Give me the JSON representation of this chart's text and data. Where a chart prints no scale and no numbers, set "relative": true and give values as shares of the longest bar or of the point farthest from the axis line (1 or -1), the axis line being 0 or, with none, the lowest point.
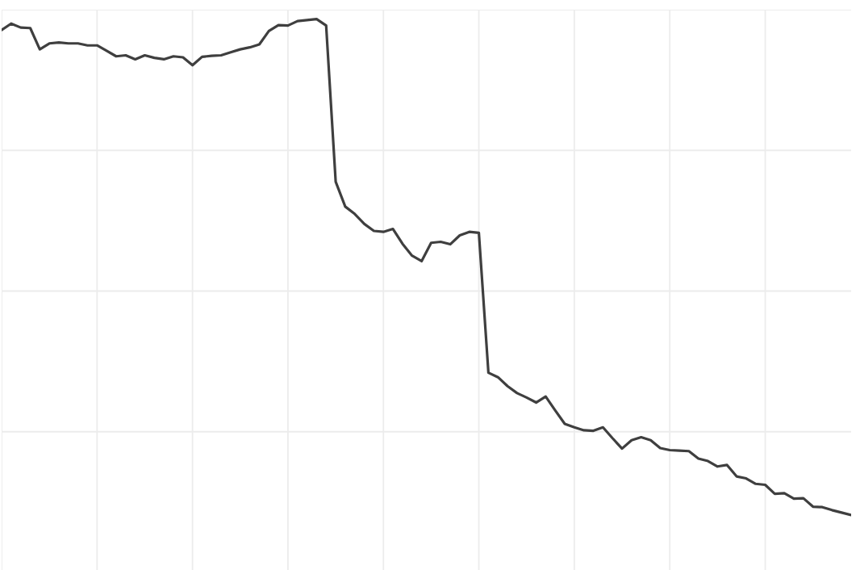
{
  "chart_data": {
    "type": "line",
    "relative": true,
    "categories": [
      null,
      null,
      null,
      null,
      null,
      null,
      null,
      null,
      null,
      null,
      null,
      null,
      null,
      null,
      null,
      null,
      null,
      null,
      null,
      null,
      null,
      null,
      null,
      null,
      null,
      null,
      null,
      null,
      null,
      null,
      null,
      null,
      null,
      null,
      null,
      null,
      null,
      null,
      null,
      null,
      null,
      null,
      null,
      null,
      null,
      null,
      null,
      null,
      null,
      null,
      null,
      null,
      null,
      null,
      null,
      null,
      null,
      null,
      null,
      null,
      null,
      null,
      null,
      null,
      null,
      null,
      null,
      null,
      null,
      null,
      null,
      null,
      null,
      null,
      null,
      null,
      null,
      null,
      null,
      null,
      null,
      null,
      null,
      null,
      null,
      null,
      null,
      null,
      null,
      null
    ],
    "series": [
      {
        "color": "#3f3f3f",
        "values": [
          0.978,
          0.991,
          0.983,
          0.982,
          0.939,
          0.951,
          0.953,
          0.951,
          0.951,
          0.947,
          0.947,
          0.936,
          0.925,
          0.927,
          0.919,
          0.927,
          0.922,
          0.919,
          0.925,
          0.923,
          0.907,
          0.924,
          0.926,
          0.927,
          0.933,
          0.939,
          0.943,
          0.949,
          0.976,
          0.988,
          0.987,
          0.996,
          0.998,
          1.0,
          0.987,
          0.672,
          0.622,
          0.607,
          0.587,
          0.573,
          0.571,
          0.577,
          0.547,
          0.523,
          0.512,
          0.549,
          0.551,
          0.546,
          0.564,
          0.571,
          0.569,
          0.287,
          0.278,
          0.26,
          0.246,
          0.237,
          0.227,
          0.239,
          0.211,
          0.184,
          0.177,
          0.171,
          0.17,
          0.177,
          0.155,
          0.134,
          0.151,
          0.157,
          0.151,
          0.135,
          0.131,
          0.13,
          0.129,
          0.114,
          0.109,
          0.098,
          0.101,
          0.078,
          0.074,
          0.063,
          0.061,
          0.043,
          0.044,
          0.033,
          0.034,
          0.017,
          0.016,
          0.01,
          0.005,
          0.0
        ]
      }
    ],
    "grid": true
  }
}
